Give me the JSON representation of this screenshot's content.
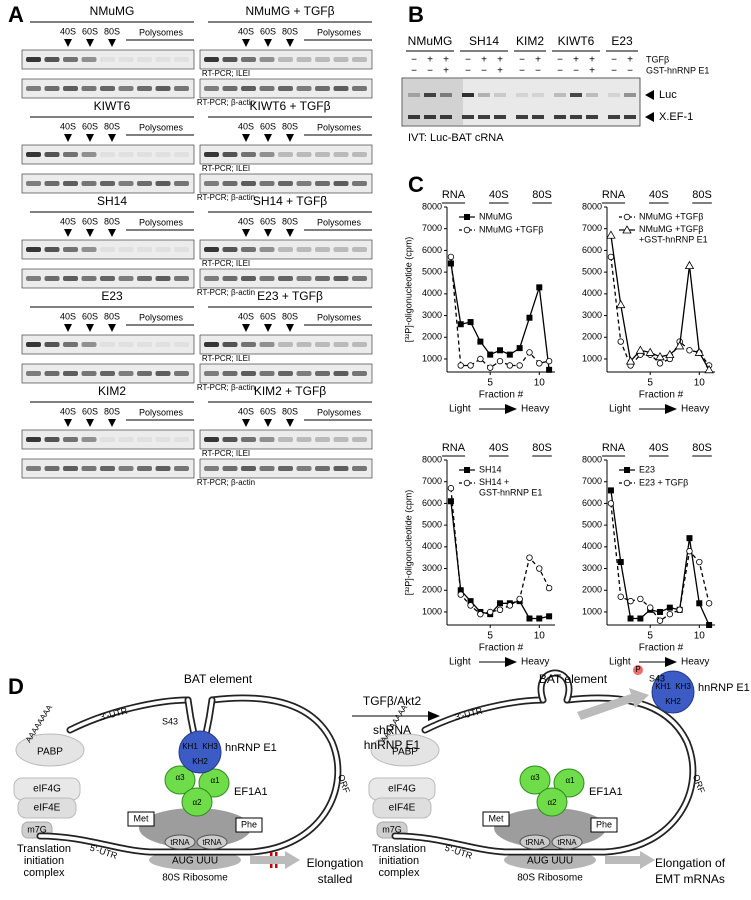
{
  "panel_a": {
    "label": "A",
    "blocks": [
      [
        "NMuMG",
        "NMuMG + TGFβ"
      ],
      [
        "KIWT6",
        "KIWT6 + TGFβ"
      ],
      [
        "SH14",
        "SH14 + TGFβ"
      ],
      [
        "E23",
        "E23 + TGFβ"
      ],
      [
        "KIM2",
        "KIM2 + TGFβ"
      ]
    ],
    "markers": [
      "40S",
      "60S",
      "80S"
    ],
    "polysomes": "Polysomes",
    "blots": [
      "RT-PCR; ILEI",
      "RT-PCR; β-actin"
    ]
  },
  "panel_b": {
    "label": "B",
    "groups": [
      {
        "name": "NMuMG",
        "tgf": [
          "−",
          "+",
          "+"
        ],
        "gst": [
          "−",
          "−",
          "+"
        ]
      },
      {
        "name": "SH14",
        "tgf": [
          "−",
          "+",
          "+"
        ],
        "gst": [
          "−",
          "−",
          "+"
        ]
      },
      {
        "name": "KIM2",
        "tgf": [
          "−",
          "+"
        ],
        "gst": [
          "−",
          "−"
        ]
      },
      {
        "name": "KIWT6",
        "tgf": [
          "−",
          "+",
          "+"
        ],
        "gst": [
          "−",
          "−",
          "+"
        ]
      },
      {
        "name": "E23",
        "tgf": [
          "−",
          "+"
        ],
        "gst": [
          "−",
          "−"
        ]
      }
    ],
    "row_labels": [
      "TGFβ",
      "GST-hnRNP E1"
    ],
    "bands": [
      "Luc",
      "X.EF-1"
    ],
    "caption": "IVT: Luc-BAT cRNA"
  },
  "panel_c_label": "C",
  "chart_data": [
    {
      "type": "line",
      "header": [
        "RNA",
        "40S",
        "80S"
      ],
      "ylabel": "[³²P]-oligonucleotide (cpm)",
      "xlabel": "Fraction #",
      "direction": [
        "Light",
        "Heavy"
      ],
      "x": [
        1,
        2,
        3,
        4,
        5,
        6,
        7,
        8,
        9,
        10,
        11
      ],
      "xlim": [
        0.6,
        11.6
      ],
      "xticks": [
        5,
        10
      ],
      "ylim": [
        400,
        8000
      ],
      "yticks": [
        1000,
        2000,
        3000,
        4000,
        5000,
        6000,
        7000,
        8000
      ],
      "series": [
        {
          "name": "NMuMG",
          "color": "#000000",
          "dashed": false,
          "marker": "square",
          "values": [
            5400,
            2600,
            2700,
            1800,
            1200,
            1400,
            1200,
            1500,
            2900,
            4300,
            500
          ]
        },
        {
          "name": "NMuMG +TGFβ",
          "color": "#000000",
          "dashed": true,
          "marker": "circle",
          "values": [
            5700,
            700,
            700,
            1000,
            600,
            900,
            700,
            700,
            1300,
            800,
            900
          ]
        }
      ]
    },
    {
      "type": "line",
      "header": [
        "RNA",
        "40S",
        "80S"
      ],
      "xlabel": "Fraction #",
      "direction": [
        "Light",
        "Heavy"
      ],
      "x": [
        1,
        2,
        3,
        4,
        5,
        6,
        7,
        8,
        9,
        10,
        11
      ],
      "xlim": [
        0.6,
        11.6
      ],
      "xticks": [
        5,
        10
      ],
      "ylim": [
        400,
        8000
      ],
      "yticks": [
        1000,
        2000,
        3000,
        4000,
        5000,
        6000,
        7000,
        8000
      ],
      "series": [
        {
          "name": "NMuMG +TGFβ",
          "color": "#000000",
          "dashed": true,
          "marker": "circle",
          "values": [
            5700,
            1800,
            700,
            1200,
            1200,
            800,
            1000,
            1800,
            1400,
            1300,
            700
          ]
        },
        {
          "name": "NMuMG +TGFβ +GST-hnRNP E1",
          "color": "#000000",
          "dashed": false,
          "marker": "triangle",
          "values": [
            6700,
            3500,
            900,
            1400,
            1300,
            1100,
            1200,
            1600,
            5300,
            1300,
            500
          ]
        }
      ]
    },
    {
      "type": "line",
      "header": [
        "RNA",
        "40S",
        "80S"
      ],
      "ylabel": "[³²P]-oligonucleotide (cpm)",
      "xlabel": "Fraction #",
      "direction": [
        "Light",
        "Heavy"
      ],
      "x": [
        1,
        2,
        3,
        4,
        5,
        6,
        7,
        8,
        9,
        10,
        11
      ],
      "xlim": [
        0.6,
        11.6
      ],
      "xticks": [
        5,
        10
      ],
      "ylim": [
        400,
        8000
      ],
      "yticks": [
        1000,
        2000,
        3000,
        4000,
        5000,
        6000,
        7000,
        8000
      ],
      "series": [
        {
          "name": "SH14",
          "color": "#000000",
          "dashed": false,
          "marker": "square",
          "values": [
            6100,
            2000,
            1500,
            1000,
            900,
            1400,
            1400,
            1500,
            700,
            700,
            800
          ]
        },
        {
          "name": "SH14 + GST-hnRNP E1",
          "color": "#000000",
          "dashed": true,
          "marker": "circle",
          "values": [
            6700,
            1800,
            1300,
            900,
            1000,
            1100,
            1300,
            1600,
            3500,
            3000,
            2100
          ]
        }
      ]
    },
    {
      "type": "line",
      "header": [
        "RNA",
        "40S",
        "80S"
      ],
      "xlabel": "Fraction #",
      "direction": [
        "Light",
        "Heavy"
      ],
      "x": [
        1,
        2,
        3,
        4,
        5,
        6,
        7,
        8,
        9,
        10,
        11
      ],
      "xlim": [
        0.6,
        11.6
      ],
      "xticks": [
        5,
        10
      ],
      "ylim": [
        400,
        8000
      ],
      "yticks": [
        1000,
        2000,
        3000,
        4000,
        5000,
        6000,
        7000,
        8000
      ],
      "series": [
        {
          "name": "E23",
          "color": "#000000",
          "dashed": false,
          "marker": "square",
          "values": [
            6600,
            3300,
            700,
            700,
            1100,
            1000,
            1200,
            1100,
            4400,
            1400,
            400
          ]
        },
        {
          "name": "E23 + TGFβ",
          "color": "#000000",
          "dashed": true,
          "marker": "circle",
          "values": [
            6000,
            1700,
            1500,
            1600,
            1200,
            600,
            900,
            1100,
            3800,
            3300,
            1400
          ]
        }
      ]
    }
  ],
  "panel_d": {
    "label": "D",
    "bat_element": "BAT element",
    "utr3": "3'-UTR",
    "utr5": "5'-UTR",
    "orf": "ORF",
    "s43": "S43",
    "phospho": "P",
    "kh": [
      "KH1",
      "KH2",
      "KH3"
    ],
    "hnrnp": "hnRNP E1",
    "alpha": [
      "α1",
      "α2",
      "α3"
    ],
    "ef1a1": "EF1A1",
    "pabp": "PABP",
    "polya": "AAAAAAAA",
    "eif": [
      "eIF4G",
      "eIF4E"
    ],
    "cap": "m7G",
    "trna_aa": [
      "Met",
      "Phe"
    ],
    "trna": "tRNA",
    "codons": "AUG UUU",
    "ribosome": "80S Ribosome",
    "initiation": [
      "Translation",
      "initiation",
      "complex"
    ],
    "stalled": [
      "Elongation",
      "stalled"
    ],
    "stimulus": "TGFβ/Akt2",
    "knockdown": [
      "shRNA",
      "hnRNP E1"
    ],
    "elongation": [
      "Elongation of",
      "EMT mRNAs"
    ]
  }
}
